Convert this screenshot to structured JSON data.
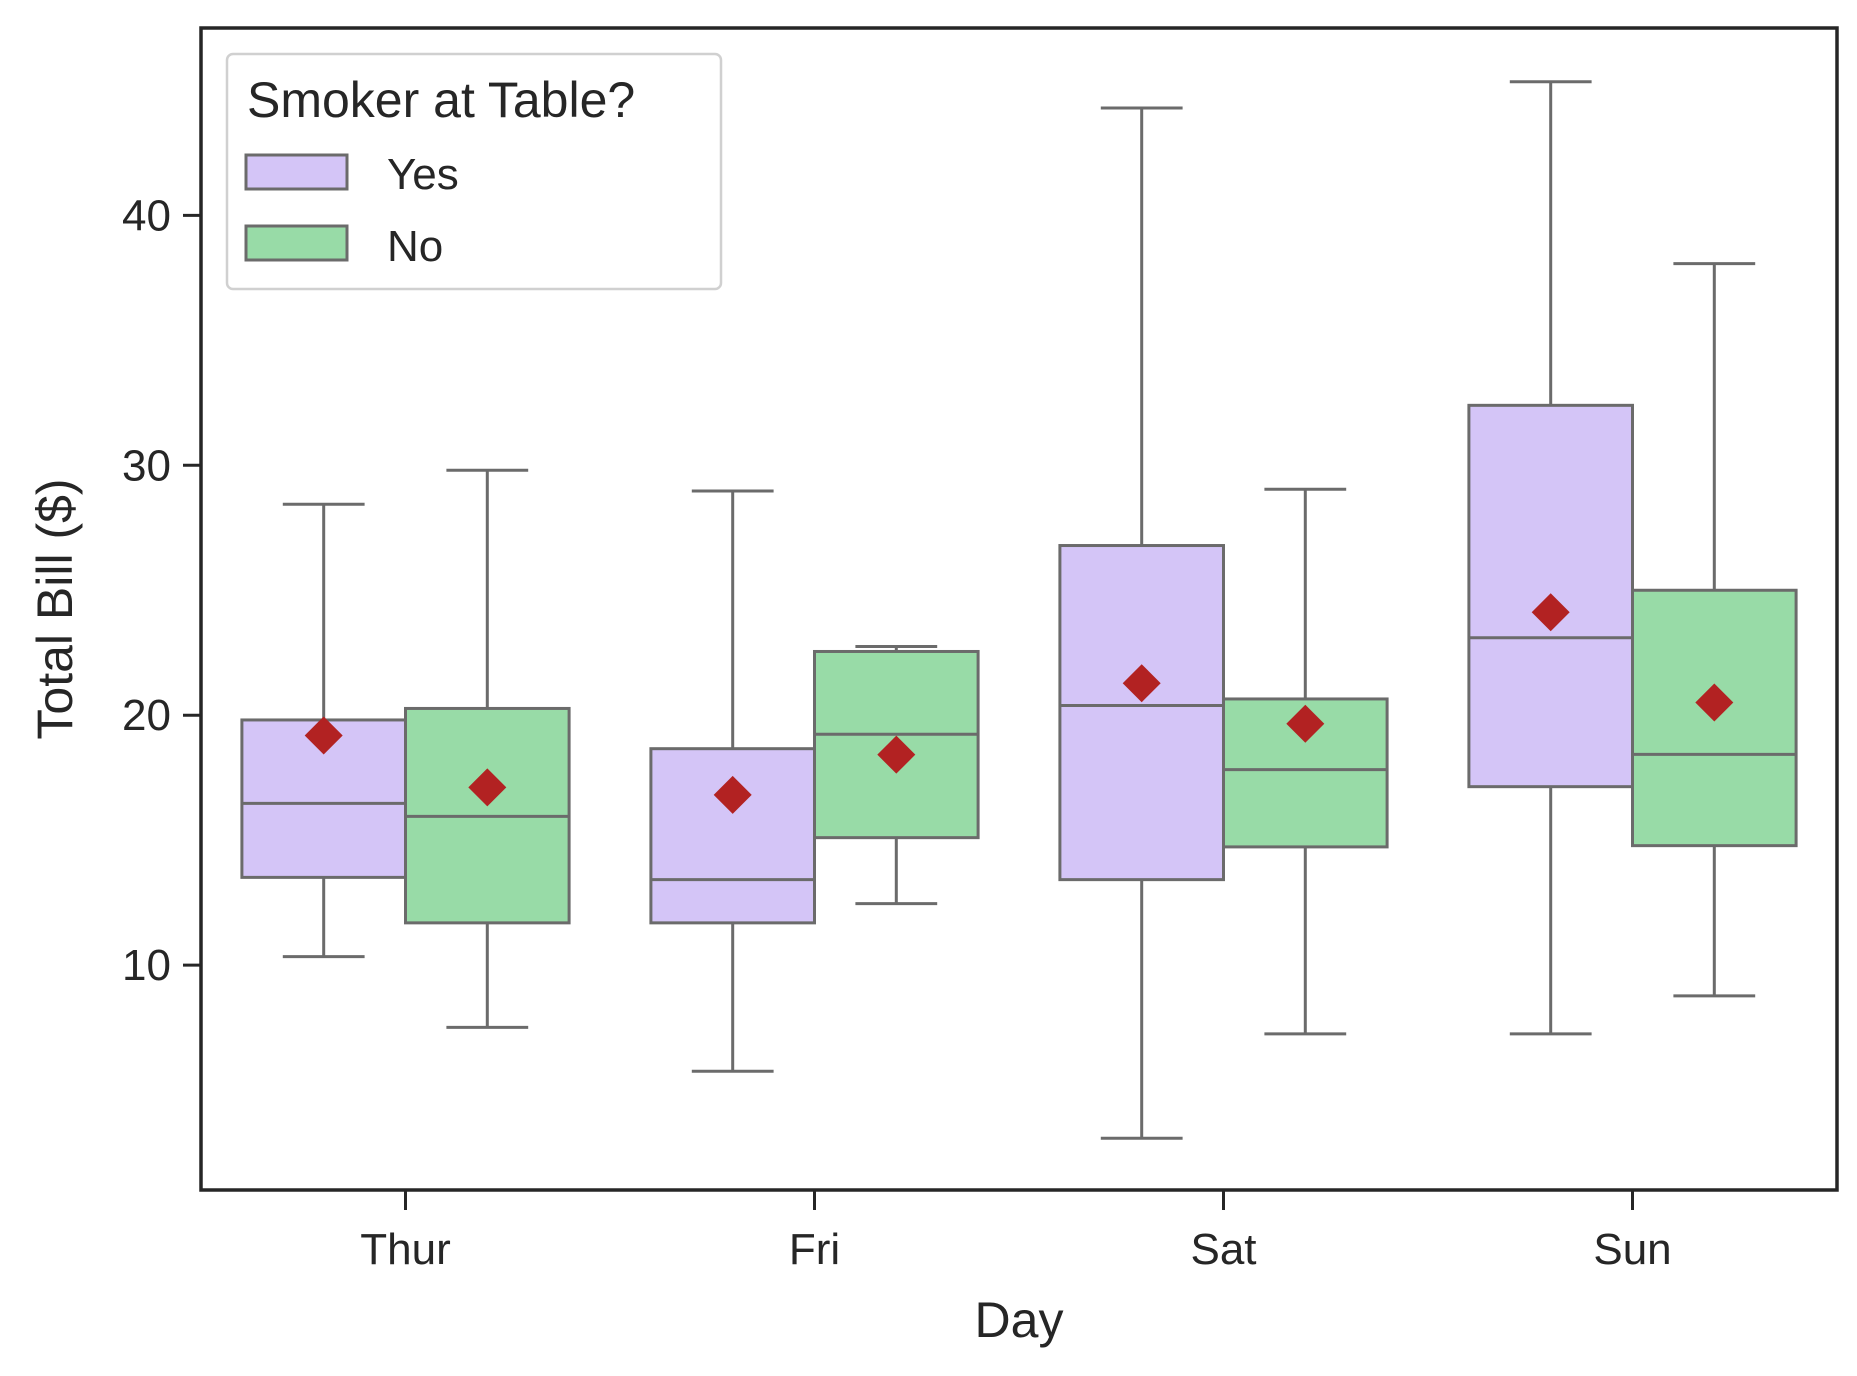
{
  "chart_data": {
    "type": "box",
    "xlabel": "Day",
    "ylabel": "Total Bill ($)",
    "categories": [
      "Thur",
      "Fri",
      "Sat",
      "Sun"
    ],
    "ylim": [
      1,
      47.5
    ],
    "yticks": [
      10,
      20,
      30,
      40
    ],
    "ytick_labels": [
      "10",
      "20",
      "30",
      "40"
    ],
    "legend": {
      "title": "Smoker at Table?",
      "position": "upper-left",
      "entries": [
        "Yes",
        "No"
      ]
    },
    "colors": {
      "Yes": "#d4c5f7",
      "No": "#98dba7",
      "box_edge": "#6b6b6b",
      "mean_marker": "#b22222",
      "axis": "#262626"
    },
    "series": [
      {
        "name": "Yes",
        "boxes": [
          {
            "category": "Thur",
            "whisker_low": 10.34,
            "q1": 13.51,
            "median": 16.47,
            "q3": 19.81,
            "whisker_high": 28.44,
            "mean": 19.19
          },
          {
            "category": "Fri",
            "whisker_low": 5.75,
            "q1": 11.69,
            "median": 13.42,
            "q3": 18.66,
            "whisker_high": 28.97,
            "mean": 16.81
          },
          {
            "category": "Sat",
            "whisker_low": 3.07,
            "q1": 13.42,
            "median": 20.39,
            "q3": 26.79,
            "whisker_high": 44.3,
            "mean": 21.28
          },
          {
            "category": "Sun",
            "whisker_low": 7.25,
            "q1": 17.14,
            "median": 23.1,
            "q3": 32.4,
            "whisker_high": 45.35,
            "mean": 24.12
          }
        ]
      },
      {
        "name": "No",
        "boxes": [
          {
            "category": "Thur",
            "whisker_low": 7.51,
            "q1": 11.69,
            "median": 15.95,
            "q3": 20.27,
            "whisker_high": 29.8,
            "mean": 17.11
          },
          {
            "category": "Fri",
            "whisker_low": 12.46,
            "q1": 15.1,
            "median": 19.24,
            "q3": 22.55,
            "whisker_high": 22.75,
            "mean": 18.42
          },
          {
            "category": "Sat",
            "whisker_low": 7.25,
            "q1": 14.73,
            "median": 17.82,
            "q3": 20.65,
            "whisker_high": 29.04,
            "mean": 19.66
          },
          {
            "category": "Sun",
            "whisker_low": 8.77,
            "q1": 14.78,
            "median": 18.43,
            "q3": 25.0,
            "whisker_high": 38.07,
            "mean": 20.51
          }
        ]
      }
    ]
  }
}
